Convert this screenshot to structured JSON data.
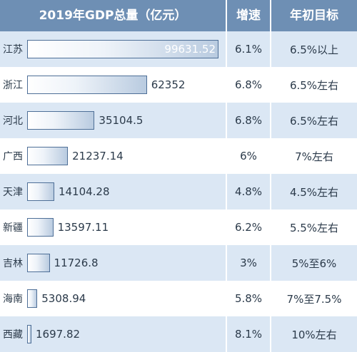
{
  "header": {
    "title": "2019年GDP总量（亿元）",
    "growth": "增速",
    "target": "年初目标"
  },
  "chart_data": {
    "type": "bar",
    "title": "2019年GDP总量（亿元）",
    "categories": [
      "江苏",
      "浙江",
      "河北",
      "广西",
      "天津",
      "新疆",
      "吉林",
      "海南",
      "西藏"
    ],
    "values": [
      99631.52,
      62352,
      35104.5,
      21237.14,
      14104.28,
      13597.11,
      11726.8,
      5308.94,
      1697.82
    ],
    "value_labels": [
      "99631.52",
      "62352",
      "35104.5",
      "21237.14",
      "14104.28",
      "13597.11",
      "11726.8",
      "5308.94",
      "1697.82"
    ],
    "growth": [
      "6.1%",
      "6.8%",
      "6.8%",
      "6%",
      "4.8%",
      "6.2%",
      "3%",
      "5.8%",
      "8.1%"
    ],
    "targets": [
      "6.5%以上",
      "6.5%左右",
      "6.5%左右",
      "7%左右",
      "4.5%左右",
      "5.5%左右",
      "5%至6%",
      "7%至7.5%",
      "10%左右"
    ]
  },
  "colors": {
    "header_bg": "#6e8fb4",
    "row_alt_bg": "#dbe7f4",
    "bar_border": "#4e6f97"
  }
}
